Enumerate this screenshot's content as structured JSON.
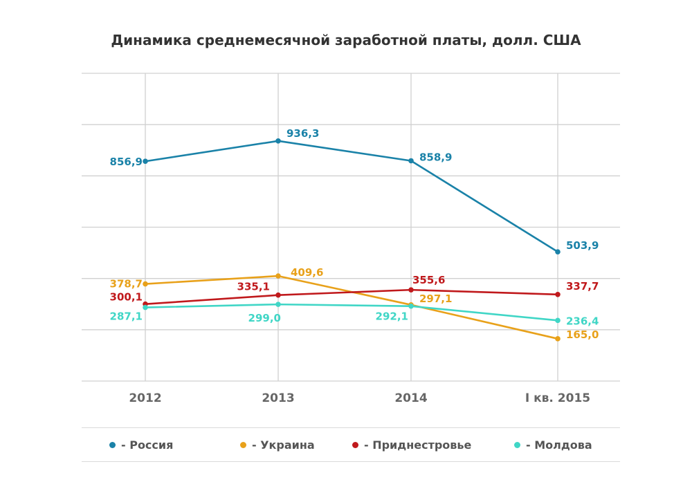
{
  "chart_data": {
    "type": "line",
    "title": "Динамика среднемесячной заработной платы, долл. США",
    "xlabel": "",
    "ylabel": "",
    "categories": [
      "2012",
      "2013",
      "2014",
      "I кв. 2015"
    ],
    "ylim": [
      0,
      1200
    ],
    "grid": true,
    "legend_position": "bottom",
    "series": [
      {
        "name": "Россия",
        "color": "#1a82a8",
        "values": [
          856.9,
          936.3,
          858.9,
          503.9
        ],
        "labels": [
          "856,9",
          "936,3",
          "858,9",
          "503,9"
        ]
      },
      {
        "name": "Украина",
        "color": "#e8a11a",
        "values": [
          378.7,
          409.6,
          297.1,
          165.0
        ],
        "labels": [
          "378,7",
          "409,6",
          "297,1",
          "165,0"
        ]
      },
      {
        "name": "Приднестровье",
        "color": "#c0191c",
        "values": [
          300.1,
          335.1,
          355.6,
          337.7
        ],
        "labels": [
          "300,1",
          "335,1",
          "355,6",
          "337,7"
        ]
      },
      {
        "name": "Молдова",
        "color": "#40d6c6",
        "values": [
          287.1,
          299.0,
          292.1,
          236.4
        ],
        "labels": [
          "287,1",
          "299,0",
          "292,1",
          "236,4"
        ]
      }
    ],
    "legend": [
      "- Россия",
      "- Украина",
      "- Приднестровье",
      "- Молдова"
    ]
  }
}
